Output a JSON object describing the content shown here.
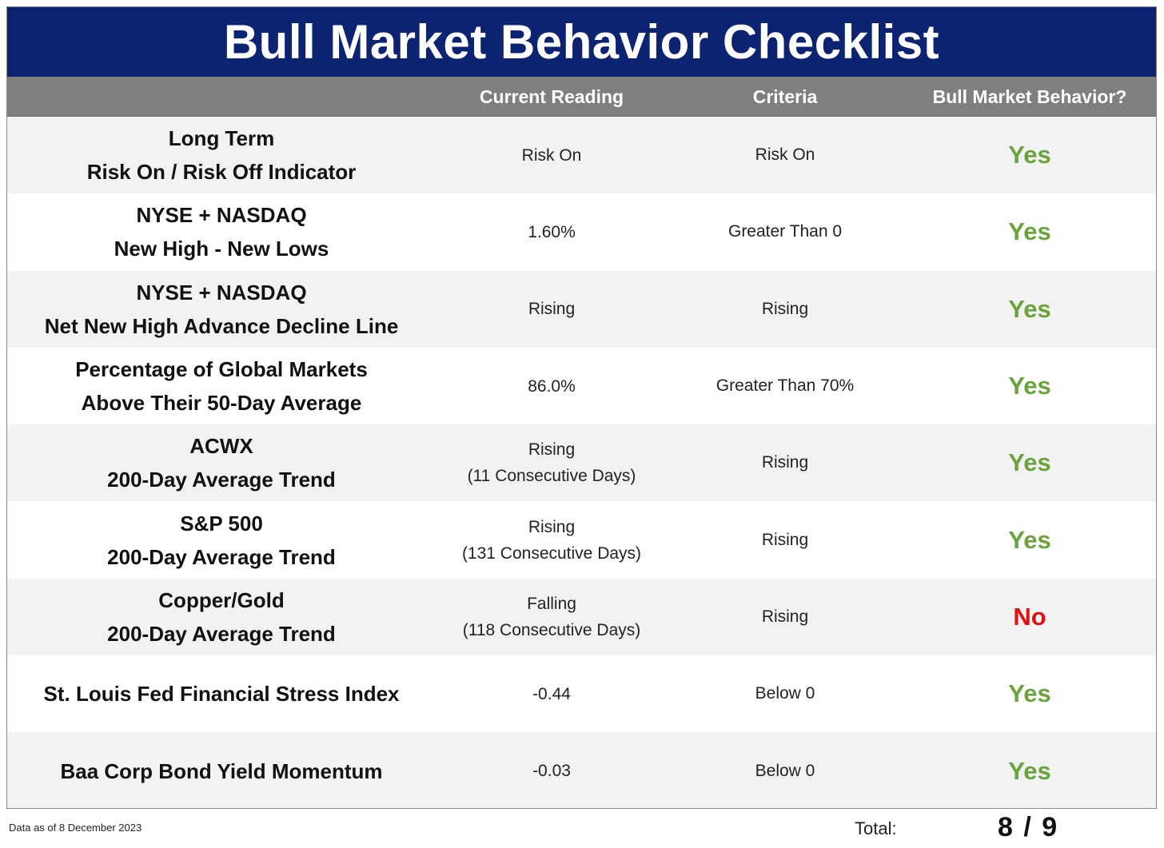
{
  "title": "Bull Market Behavior Checklist",
  "headers": {
    "indicator": "",
    "current_reading": "Current Reading",
    "criteria": "Criteria",
    "bull_market_behavior": "Bull Market Behavior?"
  },
  "rows": [
    {
      "indicator_line1": "Long Term",
      "indicator_line2": "Risk On / Risk Off Indicator",
      "reading_line1": "Risk On",
      "reading_line2": "",
      "criteria": "Risk On",
      "result": "Yes"
    },
    {
      "indicator_line1": "NYSE + NASDAQ",
      "indicator_line2": "New High - New Lows",
      "reading_line1": "1.60%",
      "reading_line2": "",
      "criteria": "Greater Than 0",
      "result": "Yes"
    },
    {
      "indicator_line1": "NYSE + NASDAQ",
      "indicator_line2": "Net New High Advance Decline Line",
      "reading_line1": "Rising",
      "reading_line2": "",
      "criteria": "Rising",
      "result": "Yes"
    },
    {
      "indicator_line1": "Percentage of Global Markets",
      "indicator_line2": "Above Their 50-Day Average",
      "reading_line1": "86.0%",
      "reading_line2": "",
      "criteria": "Greater Than 70%",
      "result": "Yes"
    },
    {
      "indicator_line1": "ACWX",
      "indicator_line2": "200-Day Average Trend",
      "reading_line1": "Rising",
      "reading_line2": "(11 Consecutive Days)",
      "criteria": "Rising",
      "result": "Yes"
    },
    {
      "indicator_line1": "S&P 500",
      "indicator_line2": "200-Day Average Trend",
      "reading_line1": "Rising",
      "reading_line2": "(131 Consecutive Days)",
      "criteria": "Rising",
      "result": "Yes"
    },
    {
      "indicator_line1": "Copper/Gold",
      "indicator_line2": "200-Day Average Trend",
      "reading_line1": "Falling",
      "reading_line2": "(118 Consecutive Days)",
      "criteria": "Rising",
      "result": "No"
    },
    {
      "indicator_line1": "St. Louis Fed Financial Stress Index",
      "indicator_line2": "",
      "reading_line1": "-0.44",
      "reading_line2": "",
      "criteria": "Below 0",
      "result": "Yes"
    },
    {
      "indicator_line1": "Baa Corp Bond Yield Momentum",
      "indicator_line2": "",
      "reading_line1": "-0.03",
      "reading_line2": "",
      "criteria": "Below 0",
      "result": "Yes"
    }
  ],
  "colors": {
    "title_bar": "#0b2370",
    "header_bar": "#7f7f7f",
    "yes": "#6aa33c",
    "no": "#e01010",
    "row_shade": "#f2f2f2"
  },
  "footer": {
    "data_as_of": "Data as of 8 December 2023",
    "total_label": "Total:",
    "total_value": "8 / 9"
  }
}
